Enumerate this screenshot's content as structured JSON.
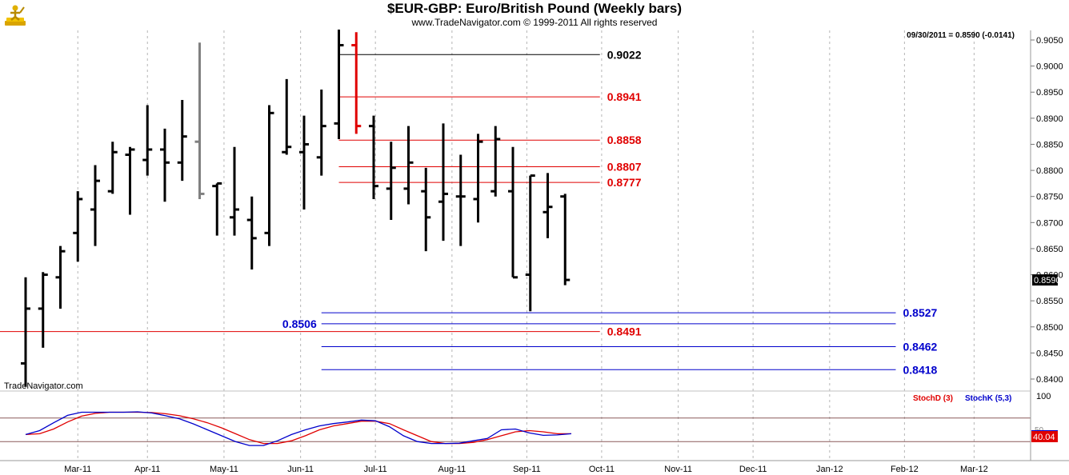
{
  "header": {
    "title": "$EUR-GBP:  Euro/British Pound  (Weekly bars)",
    "subtitle": "www.TradeNavigator.com © 1999-2011 All rights reserved",
    "logo_icon": "trading-figure-icon"
  },
  "chart_data": {
    "type": "ohlc-bar",
    "last_quote": "09/30/2011 = 0.8590 (-0.0141)",
    "last_price_label": "0.8590",
    "watermark": "TradeNavigator.com",
    "price_ylim": [
      0.837,
      0.9075
    ],
    "price_ticks": [
      "0.9050",
      "0.9000",
      "0.8950",
      "0.8900",
      "0.8850",
      "0.8800",
      "0.8750",
      "0.8700",
      "0.8650",
      "0.8600",
      "0.8550",
      "0.8500",
      "0.8450",
      "0.8400"
    ],
    "months": [
      {
        "label": "Mar-11",
        "week": 3.0
      },
      {
        "label": "Apr-11",
        "week": 7.0
      },
      {
        "label": "May-11",
        "week": 11.4
      },
      {
        "label": "Jun-11",
        "week": 15.8
      },
      {
        "label": "Jul-11",
        "week": 20.1
      },
      {
        "label": "Aug-11",
        "week": 24.5
      },
      {
        "label": "Sep-11",
        "week": 28.8
      },
      {
        "label": "Oct-11",
        "week": 33.1
      },
      {
        "label": "Nov-11",
        "week": 37.5
      },
      {
        "label": "Dec-11",
        "week": 41.8
      },
      {
        "label": "Jan-12",
        "week": 46.2
      },
      {
        "label": "Feb-12",
        "week": 50.5
      },
      {
        "label": "Mar-12",
        "week": 54.5
      }
    ],
    "bars": [
      {
        "o": 0.843,
        "h": 0.8595,
        "l": 0.8385,
        "c": 0.8535
      },
      {
        "o": 0.8535,
        "h": 0.8605,
        "l": 0.846,
        "c": 0.86
      },
      {
        "o": 0.8595,
        "h": 0.8655,
        "l": 0.8535,
        "c": 0.8645
      },
      {
        "o": 0.868,
        "h": 0.876,
        "l": 0.8625,
        "c": 0.8745
      },
      {
        "o": 0.8725,
        "h": 0.881,
        "l": 0.8655,
        "c": 0.878
      },
      {
        "o": 0.876,
        "h": 0.8855,
        "l": 0.8755,
        "c": 0.8835
      },
      {
        "o": 0.883,
        "h": 0.8845,
        "l": 0.8715,
        "c": 0.884
      },
      {
        "o": 0.882,
        "h": 0.8925,
        "l": 0.879,
        "c": 0.884
      },
      {
        "o": 0.884,
        "h": 0.888,
        "l": 0.874,
        "c": 0.8815
      },
      {
        "o": 0.8815,
        "h": 0.8935,
        "l": 0.878,
        "c": 0.8865
      },
      {
        "o": 0.8855,
        "h": 0.9045,
        "l": 0.8745,
        "c": 0.8755,
        "color": "#808080"
      },
      {
        "o": 0.877,
        "h": 0.8775,
        "l": 0.8675,
        "c": 0.8775
      },
      {
        "o": 0.871,
        "h": 0.8845,
        "l": 0.8675,
        "c": 0.8725
      },
      {
        "o": 0.8705,
        "h": 0.875,
        "l": 0.861,
        "c": 0.867
      },
      {
        "o": 0.868,
        "h": 0.8925,
        "l": 0.8655,
        "c": 0.891
      },
      {
        "o": 0.8835,
        "h": 0.8975,
        "l": 0.883,
        "c": 0.8845
      },
      {
        "o": 0.8835,
        "h": 0.8905,
        "l": 0.8725,
        "c": 0.885
      },
      {
        "o": 0.8825,
        "h": 0.8955,
        "l": 0.879,
        "c": 0.8885
      },
      {
        "o": 0.889,
        "h": 0.907,
        "l": 0.886,
        "c": 0.904
      },
      {
        "o": 0.904,
        "h": 0.9065,
        "l": 0.887,
        "c": 0.8885,
        "color": "#e00000"
      },
      {
        "o": 0.8885,
        "h": 0.8905,
        "l": 0.8745,
        "c": 0.877
      },
      {
        "o": 0.8765,
        "h": 0.8855,
        "l": 0.8705,
        "c": 0.8805
      },
      {
        "o": 0.8765,
        "h": 0.8885,
        "l": 0.8735,
        "c": 0.8815
      },
      {
        "o": 0.876,
        "h": 0.8805,
        "l": 0.8645,
        "c": 0.871
      },
      {
        "o": 0.874,
        "h": 0.889,
        "l": 0.8665,
        "c": 0.8755
      },
      {
        "o": 0.875,
        "h": 0.883,
        "l": 0.8655,
        "c": 0.875
      },
      {
        "o": 0.8745,
        "h": 0.887,
        "l": 0.87,
        "c": 0.8855
      },
      {
        "o": 0.876,
        "h": 0.8885,
        "l": 0.875,
        "c": 0.886
      },
      {
        "o": 0.876,
        "h": 0.8845,
        "l": 0.8595,
        "c": 0.8595
      },
      {
        "o": 0.86,
        "h": 0.879,
        "l": 0.853,
        "c": 0.879
      },
      {
        "o": 0.872,
        "h": 0.8795,
        "l": 0.867,
        "c": 0.873
      },
      {
        "o": 0.875,
        "h": 0.8755,
        "l": 0.858,
        "c": 0.859
      }
    ],
    "levels": [
      {
        "value": 0.9022,
        "label": "0.9022",
        "color": "#000000",
        "x1": 18.0,
        "x2": 33.0,
        "label_side": "right"
      },
      {
        "value": 0.8941,
        "label": "0.8941",
        "color": "#e00000",
        "x1": 18.0,
        "x2": 33.0,
        "label_side": "right"
      },
      {
        "value": 0.8858,
        "label": "0.8858",
        "color": "#e00000",
        "x1": 18.0,
        "x2": 33.0,
        "label_side": "right"
      },
      {
        "value": 0.8807,
        "label": "0.8807",
        "color": "#e00000",
        "x1": 18.0,
        "x2": 33.0,
        "label_side": "right"
      },
      {
        "value": 0.8777,
        "label": "0.8777",
        "color": "#e00000",
        "x1": 18.0,
        "x2": 33.0,
        "label_side": "right"
      },
      {
        "value": 0.8527,
        "label": "0.8527",
        "color": "#0000cc",
        "x1": 17.0,
        "x2": 50.0,
        "label_side": "right"
      },
      {
        "value": 0.8506,
        "label": "0.8506",
        "color": "#0000cc",
        "x1": 17.0,
        "x2": 50.0,
        "label_side": "left"
      },
      {
        "value": 0.8491,
        "label": "0.8491",
        "color": "#e00000",
        "x1": -1.5,
        "x2": 33.0,
        "label_side": "right"
      },
      {
        "value": 0.8462,
        "label": "0.8462",
        "color": "#0000cc",
        "x1": 17.0,
        "x2": 50.0,
        "label_side": "right"
      },
      {
        "value": 0.8418,
        "label": "0.8418",
        "color": "#0000cc",
        "x1": 17.0,
        "x2": 50.0,
        "label_side": "right"
      }
    ],
    "stoch": {
      "ylim": [
        0,
        100
      ],
      "tick_label": "100",
      "ref_lines": [
        80,
        20
      ],
      "stochd_label": "StochD (3)",
      "stochk_label": "StochK (5,3)",
      "stochd_color": "#e00000",
      "stochk_color": "#0000cc",
      "value_marker": "50",
      "value_label": "40.04",
      "k": [
        38,
        48,
        68,
        87,
        95,
        95,
        95,
        95,
        96,
        93,
        86,
        78,
        65,
        50,
        35,
        20,
        10,
        10,
        22,
        38,
        50,
        60,
        66,
        70,
        75,
        73,
        58,
        35,
        20,
        15,
        15,
        16,
        22,
        28,
        50,
        52,
        42,
        36,
        37,
        40
      ],
      "d": [
        38,
        40,
        52,
        70,
        85,
        92,
        95,
        95,
        95,
        94,
        91,
        86,
        78,
        68,
        55,
        40,
        25,
        15,
        15,
        22,
        35,
        50,
        60,
        66,
        72,
        72,
        66,
        50,
        35,
        20,
        15,
        15,
        18,
        25,
        35,
        45,
        48,
        45,
        40,
        40
      ]
    }
  }
}
